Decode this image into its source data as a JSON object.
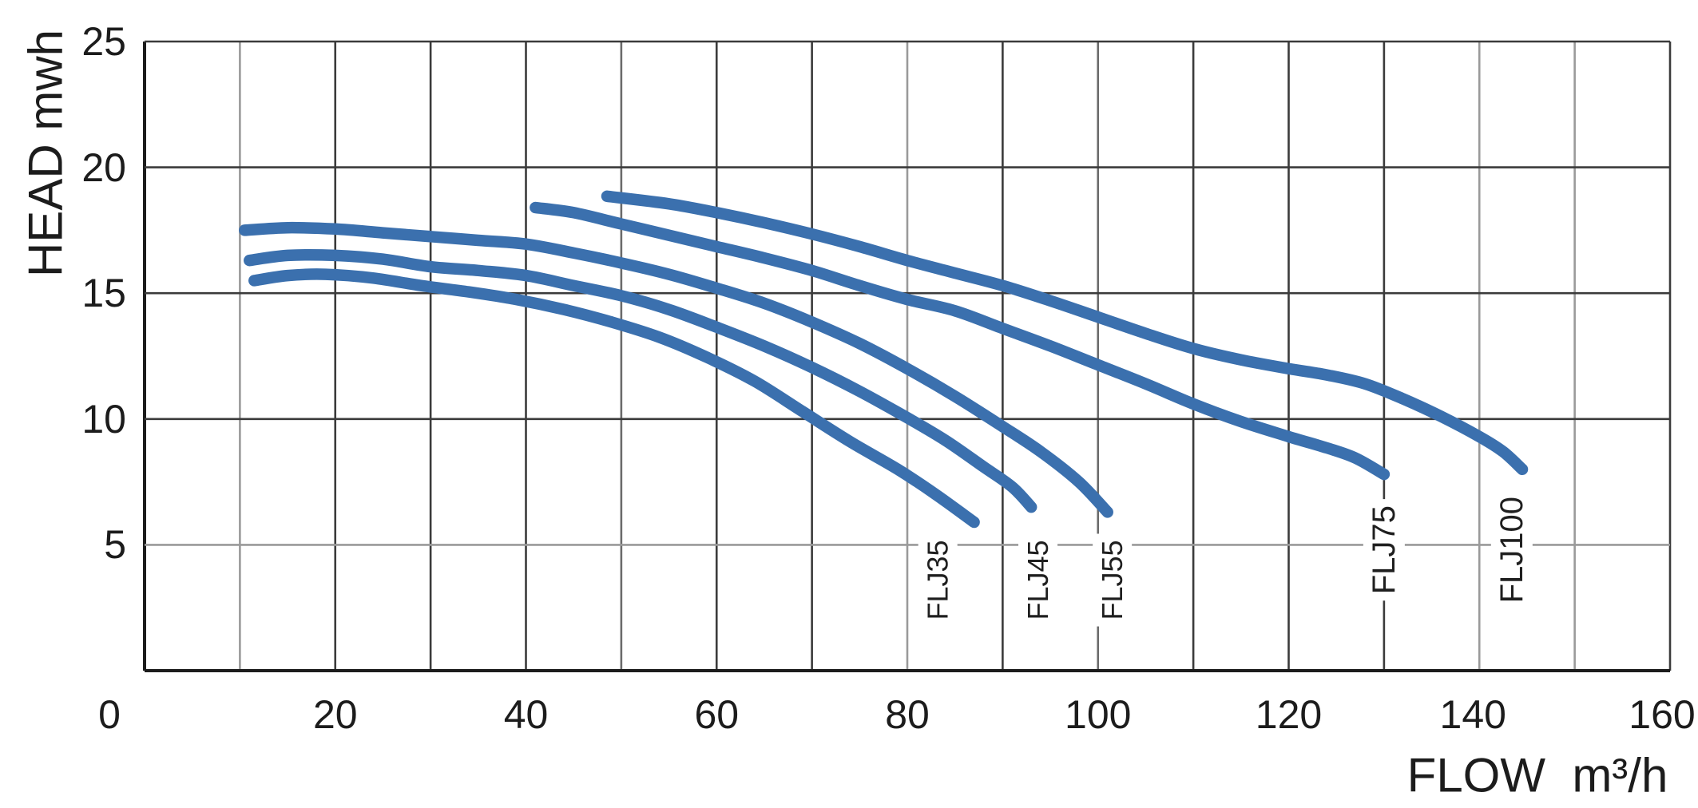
{
  "axes": {
    "x_title": "FLOW  m³/h",
    "y_title": "HEAD mwh",
    "x_tick_labels": [
      "0",
      "20",
      "40",
      "60",
      "80",
      "100",
      "120",
      "140",
      "160"
    ],
    "y_tick_labels": [
      "25",
      "20",
      "15",
      "10",
      "5"
    ]
  },
  "chart_data": {
    "type": "line",
    "title": "",
    "xlabel": "FLOW m³/h",
    "ylabel": "HEAD mwh",
    "xlim": [
      0,
      160
    ],
    "ylim": [
      0,
      25
    ],
    "x_ticks": [
      0,
      20,
      40,
      60,
      80,
      100,
      120,
      140,
      160
    ],
    "y_ticks": [
      5,
      10,
      15,
      20,
      25
    ],
    "grid": {
      "on": true,
      "x_step": 10,
      "y_step": 5
    },
    "legend_position": "labels-on-plot",
    "curve_color": "#3B70AE",
    "series": [
      {
        "name": "FLJ35",
        "points": [
          [
            11.5,
            15.5
          ],
          [
            15,
            15.7
          ],
          [
            19,
            15.75
          ],
          [
            24,
            15.6
          ],
          [
            29,
            15.3
          ],
          [
            34,
            15.05
          ],
          [
            39,
            14.75
          ],
          [
            44,
            14.35
          ],
          [
            49,
            13.85
          ],
          [
            54,
            13.25
          ],
          [
            59,
            12.45
          ],
          [
            64,
            11.5
          ],
          [
            69,
            10.3
          ],
          [
            74,
            9.1
          ],
          [
            79,
            8.0
          ],
          [
            83,
            7.0
          ],
          [
            87,
            5.9
          ]
        ]
      },
      {
        "name": "FLJ45",
        "points": [
          [
            11,
            16.3
          ],
          [
            15,
            16.5
          ],
          [
            20,
            16.5
          ],
          [
            25,
            16.35
          ],
          [
            30,
            16.05
          ],
          [
            35,
            15.9
          ],
          [
            40,
            15.7
          ],
          [
            45,
            15.3
          ],
          [
            50,
            14.9
          ],
          [
            55,
            14.35
          ],
          [
            60,
            13.65
          ],
          [
            65,
            12.9
          ],
          [
            70,
            12.05
          ],
          [
            75,
            11.1
          ],
          [
            80,
            10.05
          ],
          [
            84,
            9.15
          ],
          [
            88,
            8.1
          ],
          [
            91,
            7.3
          ],
          [
            93,
            6.5
          ]
        ]
      },
      {
        "name": "FLJ55",
        "points": [
          [
            10.5,
            17.5
          ],
          [
            15,
            17.6
          ],
          [
            20,
            17.55
          ],
          [
            25,
            17.4
          ],
          [
            30,
            17.25
          ],
          [
            35,
            17.1
          ],
          [
            40,
            16.95
          ],
          [
            45,
            16.6
          ],
          [
            50,
            16.2
          ],
          [
            55,
            15.75
          ],
          [
            60,
            15.2
          ],
          [
            65,
            14.6
          ],
          [
            70,
            13.85
          ],
          [
            75,
            13.0
          ],
          [
            80,
            12.0
          ],
          [
            85,
            10.9
          ],
          [
            90,
            9.7
          ],
          [
            94,
            8.7
          ],
          [
            98,
            7.5
          ],
          [
            101,
            6.3
          ]
        ]
      },
      {
        "name": "FLJ75",
        "points": [
          [
            41,
            18.4
          ],
          [
            45,
            18.2
          ],
          [
            50,
            17.75
          ],
          [
            55,
            17.3
          ],
          [
            60,
            16.85
          ],
          [
            65,
            16.4
          ],
          [
            70,
            15.9
          ],
          [
            75,
            15.3
          ],
          [
            80,
            14.75
          ],
          [
            85,
            14.3
          ],
          [
            90,
            13.6
          ],
          [
            95,
            12.9
          ],
          [
            100,
            12.15
          ],
          [
            105,
            11.4
          ],
          [
            110,
            10.6
          ],
          [
            115,
            9.9
          ],
          [
            120,
            9.3
          ],
          [
            124,
            8.85
          ],
          [
            127,
            8.45
          ],
          [
            130,
            7.8
          ]
        ]
      },
      {
        "name": "FLJ100",
        "points": [
          [
            48.5,
            18.85
          ],
          [
            55,
            18.55
          ],
          [
            60,
            18.2
          ],
          [
            65,
            17.8
          ],
          [
            70,
            17.35
          ],
          [
            75,
            16.85
          ],
          [
            80,
            16.3
          ],
          [
            85,
            15.8
          ],
          [
            90,
            15.3
          ],
          [
            95,
            14.7
          ],
          [
            100,
            14.05
          ],
          [
            105,
            13.4
          ],
          [
            110,
            12.8
          ],
          [
            115,
            12.35
          ],
          [
            120,
            12.0
          ],
          [
            124,
            11.75
          ],
          [
            128,
            11.4
          ],
          [
            132,
            10.8
          ],
          [
            136,
            10.1
          ],
          [
            140,
            9.3
          ],
          [
            142.5,
            8.7
          ],
          [
            144.5,
            8.0
          ]
        ]
      }
    ],
    "curve_labels": [
      {
        "text": "FLJ35",
        "flow": 83.2,
        "head_center": 3.6,
        "size": "small"
      },
      {
        "text": "FLJ45",
        "flow": 93.7,
        "head_center": 3.6,
        "size": "small"
      },
      {
        "text": "FLJ55",
        "flow": 101.5,
        "head_center": 3.6,
        "size": "small"
      },
      {
        "text": "FLJ75",
        "flow": 130.0,
        "head_center": 4.8,
        "size": "large"
      },
      {
        "text": "FLJ100",
        "flow": 143.4,
        "head_center": 4.8,
        "size": "large"
      }
    ],
    "grid_colors": {
      "D": "#3b3b3b",
      "M": "#6b6b6b",
      "L": "#9a9a9a",
      "axis": "#1c1c1c"
    },
    "grid_shades": {
      "vertical": [
        "axis",
        "L",
        "D",
        "D",
        "D",
        "M",
        "D",
        "D",
        "L",
        "D",
        "M",
        "D",
        "D",
        "D",
        "L",
        "L",
        "D"
      ],
      "horizontal": [
        "axis",
        "L",
        "D",
        "D",
        "D",
        "D"
      ]
    },
    "text_color": "#1c1c1c"
  }
}
